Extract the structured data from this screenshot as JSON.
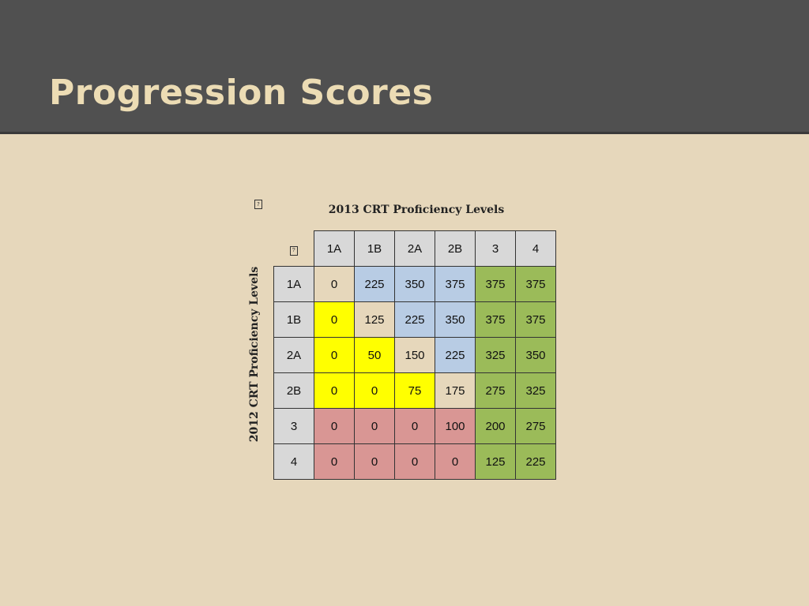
{
  "slide": {
    "title": "Progression Scores"
  },
  "table": {
    "col_axis_label": "2013 CRT Proficiency Levels",
    "row_axis_label": "2012 CRT Proficiency Levels",
    "placeholder_glyph": "?",
    "col_headers": [
      "1A",
      "1B",
      "2A",
      "2B",
      "3",
      "4"
    ],
    "rows": [
      {
        "label": "1A",
        "cells": [
          {
            "v": "0",
            "bg": "#e6d7bb"
          },
          {
            "v": "225",
            "bg": "#b8cce4"
          },
          {
            "v": "350",
            "bg": "#b8cce4"
          },
          {
            "v": "375",
            "bg": "#b8cce4"
          },
          {
            "v": "375",
            "bg": "#9bbb59"
          },
          {
            "v": "375",
            "bg": "#9bbb59"
          }
        ]
      },
      {
        "label": "1B",
        "cells": [
          {
            "v": "0",
            "bg": "#ffff00"
          },
          {
            "v": "125",
            "bg": "#e6d7bb"
          },
          {
            "v": "225",
            "bg": "#b8cce4"
          },
          {
            "v": "350",
            "bg": "#b8cce4"
          },
          {
            "v": "375",
            "bg": "#9bbb59"
          },
          {
            "v": "375",
            "bg": "#9bbb59"
          }
        ]
      },
      {
        "label": "2A",
        "cells": [
          {
            "v": "0",
            "bg": "#ffff00"
          },
          {
            "v": "50",
            "bg": "#ffff00"
          },
          {
            "v": "150",
            "bg": "#e6d7bb"
          },
          {
            "v": "225",
            "bg": "#b8cce4"
          },
          {
            "v": "325",
            "bg": "#9bbb59"
          },
          {
            "v": "350",
            "bg": "#9bbb59"
          }
        ]
      },
      {
        "label": "2B",
        "cells": [
          {
            "v": "0",
            "bg": "#ffff00"
          },
          {
            "v": "0",
            "bg": "#ffff00"
          },
          {
            "v": "75",
            "bg": "#ffff00"
          },
          {
            "v": "175",
            "bg": "#e6d7bb"
          },
          {
            "v": "275",
            "bg": "#9bbb59"
          },
          {
            "v": "325",
            "bg": "#9bbb59"
          }
        ]
      },
      {
        "label": "3",
        "cells": [
          {
            "v": "0",
            "bg": "#d99694"
          },
          {
            "v": "0",
            "bg": "#d99694"
          },
          {
            "v": "0",
            "bg": "#d99694"
          },
          {
            "v": "100",
            "bg": "#d99694"
          },
          {
            "v": "200",
            "bg": "#9bbb59"
          },
          {
            "v": "275",
            "bg": "#9bbb59"
          }
        ]
      },
      {
        "label": "4",
        "cells": [
          {
            "v": "0",
            "bg": "#d99694"
          },
          {
            "v": "0",
            "bg": "#d99694"
          },
          {
            "v": "0",
            "bg": "#d99694"
          },
          {
            "v": "0",
            "bg": "#d99694"
          },
          {
            "v": "125",
            "bg": "#9bbb59"
          },
          {
            "v": "225",
            "bg": "#9bbb59"
          }
        ]
      }
    ]
  },
  "colors": {
    "header_bar": "#505050",
    "title_text": "#ecdcb4",
    "slide_background": "#e6d7bb",
    "header_cell": "#d8d8d8",
    "same_level": "#e6d7bb",
    "regress": "#ffff00",
    "decline": "#d99694",
    "growth": "#b8cce4",
    "proficient": "#9bbb59"
  }
}
